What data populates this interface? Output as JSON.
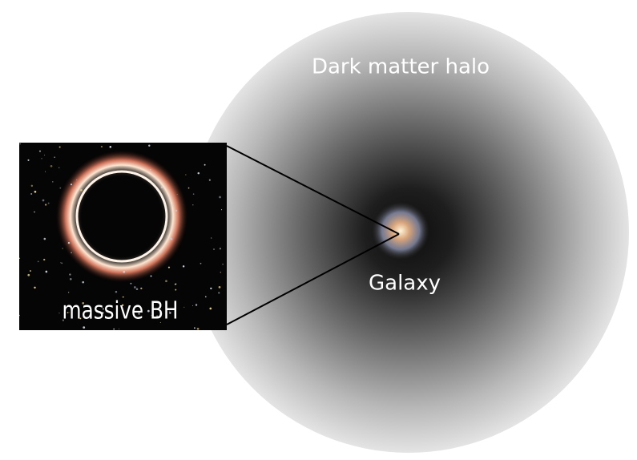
{
  "labels": {
    "halo": "Dark matter halo",
    "galaxy": "Galaxy",
    "black_hole": "massive BH"
  }
}
